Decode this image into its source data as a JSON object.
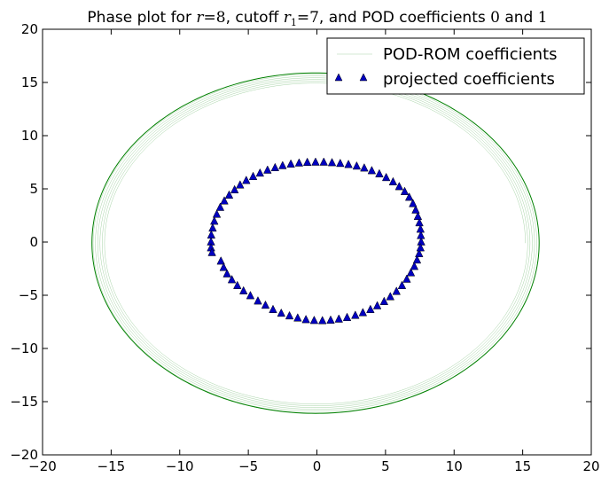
{
  "chart_data": {
    "type": "scatter",
    "title": {
      "prefix": "Phase plot for ",
      "r_symbol": "r",
      "r_value": "8",
      "cutoff_word": ", cutoff ",
      "r1_symbol": "r",
      "r1_sub": "1",
      "r1_value": "7",
      "middle": ", and POD coefficients ",
      "coef_a": "0",
      "and_word": " and ",
      "coef_b": "1"
    },
    "xlim": [
      -20,
      20
    ],
    "ylim": [
      -20,
      20
    ],
    "xticks": [
      -20,
      -15,
      -10,
      -5,
      0,
      5,
      10,
      15,
      20
    ],
    "yticks": [
      -20,
      -15,
      -10,
      -5,
      0,
      5,
      10,
      15,
      20
    ],
    "x_tick_labels": [
      "−20",
      "−15",
      "−10",
      "−5",
      "0",
      "5",
      "10",
      "15",
      "20"
    ],
    "y_tick_labels": [
      "−20",
      "−15",
      "−10",
      "−5",
      "0",
      "5",
      "10",
      "15",
      "20"
    ],
    "grid": false,
    "legend_position": "top-right",
    "series": [
      {
        "name": "POD-ROM coefficients",
        "kind": "line",
        "color": "#008000",
        "spiral": {
          "rx_start": 15.3,
          "ry_start": 15.0,
          "rx_end": 16.3,
          "ry_end": 16.0,
          "x_center": -0.1,
          "y_center": -0.1,
          "turns": 6
        }
      },
      {
        "name": "projected coefficients",
        "kind": "marker",
        "marker": "triangle-up",
        "color": "#0000bf",
        "points": [
          [
            7.6,
            0.0
          ],
          [
            7.58,
            0.6
          ],
          [
            7.55,
            1.2
          ],
          [
            7.47,
            1.8
          ],
          [
            7.36,
            2.4
          ],
          [
            7.2,
            3.0
          ],
          [
            7.0,
            3.6
          ],
          [
            6.73,
            4.2
          ],
          [
            6.4,
            4.73
          ],
          [
            6.0,
            5.2
          ],
          [
            5.55,
            5.65
          ],
          [
            5.05,
            6.05
          ],
          [
            4.55,
            6.4
          ],
          [
            4.0,
            6.7
          ],
          [
            3.45,
            6.95
          ],
          [
            2.9,
            7.13
          ],
          [
            2.3,
            7.28
          ],
          [
            1.7,
            7.38
          ],
          [
            1.1,
            7.45
          ],
          [
            0.5,
            7.5
          ],
          [
            -0.1,
            7.5
          ],
          [
            -0.7,
            7.48
          ],
          [
            -1.3,
            7.42
          ],
          [
            -1.9,
            7.32
          ],
          [
            -2.5,
            7.17
          ],
          [
            -3.05,
            6.98
          ],
          [
            -3.6,
            6.75
          ],
          [
            -4.15,
            6.47
          ],
          [
            -4.65,
            6.15
          ],
          [
            -5.15,
            5.78
          ],
          [
            -5.6,
            5.35
          ],
          [
            -6.0,
            4.9
          ],
          [
            -6.4,
            4.4
          ],
          [
            -6.75,
            3.85
          ],
          [
            -7.05,
            3.25
          ],
          [
            -7.3,
            2.6
          ],
          [
            -7.48,
            1.95
          ],
          [
            -7.6,
            1.3
          ],
          [
            -7.7,
            0.65
          ],
          [
            -7.72,
            0.0
          ],
          [
            -7.72,
            -0.55
          ],
          [
            -7.65,
            -1.0
          ],
          [
            -7.0,
            -1.8
          ],
          [
            -6.8,
            -2.4
          ],
          [
            -6.55,
            -3.0
          ],
          [
            -6.2,
            -3.55
          ],
          [
            -5.8,
            -4.1
          ],
          [
            -5.35,
            -4.6
          ],
          [
            -4.85,
            -5.05
          ],
          [
            -4.3,
            -5.55
          ],
          [
            -3.75,
            -5.95
          ],
          [
            -3.2,
            -6.35
          ],
          [
            -2.6,
            -6.7
          ],
          [
            -2.0,
            -6.95
          ],
          [
            -1.4,
            -7.15
          ],
          [
            -0.8,
            -7.3
          ],
          [
            -0.2,
            -7.38
          ],
          [
            0.4,
            -7.4
          ],
          [
            1.0,
            -7.35
          ],
          [
            1.6,
            -7.25
          ],
          [
            2.2,
            -7.1
          ],
          [
            2.8,
            -6.9
          ],
          [
            3.35,
            -6.65
          ],
          [
            3.9,
            -6.35
          ],
          [
            4.4,
            -6.0
          ],
          [
            4.9,
            -5.6
          ],
          [
            5.35,
            -5.15
          ],
          [
            5.8,
            -4.65
          ],
          [
            6.2,
            -4.1
          ],
          [
            6.55,
            -3.5
          ],
          [
            6.85,
            -2.9
          ],
          [
            7.1,
            -2.3
          ],
          [
            7.3,
            -1.7
          ],
          [
            7.45,
            -1.1
          ],
          [
            7.55,
            -0.55
          ]
        ]
      }
    ]
  }
}
